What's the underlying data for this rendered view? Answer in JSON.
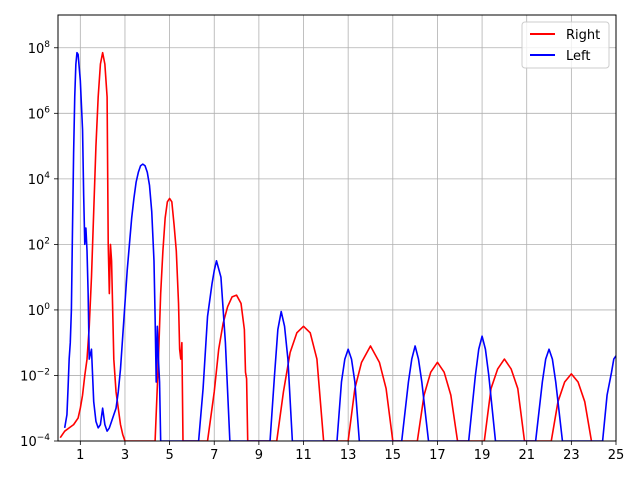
{
  "chart_data": {
    "type": "line",
    "title": "",
    "xlabel": "",
    "ylabel": "",
    "xlim": [
      0,
      25
    ],
    "ylim_exponent": [
      -4,
      9
    ],
    "yscale": "log",
    "grid": true,
    "legend_position": "top-right",
    "x_ticks": [
      1,
      3,
      5,
      7,
      9,
      11,
      13,
      15,
      17,
      19,
      21,
      23,
      25
    ],
    "x_tick_labels": [
      "1",
      "3",
      "5",
      "7",
      "9",
      "11",
      "13",
      "15",
      "17",
      "19",
      "21",
      "23",
      "25"
    ],
    "y_ticks_exponent": [
      -4,
      -2,
      0,
      2,
      4,
      6,
      8
    ],
    "y_tick_base": "10",
    "y_tick_exponent_labels": [
      "−4",
      "−2",
      "0",
      "2",
      "4",
      "6",
      "8"
    ],
    "series": [
      {
        "name": "Right",
        "color": "#ff0000",
        "x": [
          0.1,
          0.3,
          0.5,
          0.7,
          0.9,
          1.0,
          1.1,
          1.2,
          1.3,
          1.4,
          1.5,
          1.6,
          1.7,
          1.8,
          1.9,
          2.0,
          2.1,
          2.2,
          2.25,
          2.3,
          2.35,
          2.4,
          2.5,
          2.6,
          2.7,
          2.8,
          2.9,
          3.0,
          4.35,
          4.5,
          4.6,
          4.7,
          4.8,
          4.9,
          5.0,
          5.1,
          5.2,
          5.3,
          5.4,
          5.45,
          5.5,
          5.55,
          5.6,
          6.7,
          7.0,
          7.2,
          7.4,
          7.6,
          7.8,
          8.0,
          8.2,
          8.35,
          8.4,
          8.45,
          8.5,
          9.8,
          10.1,
          10.4,
          10.7,
          11.0,
          11.3,
          11.6,
          11.9,
          13.0,
          13.3,
          13.6,
          14.0,
          14.4,
          14.7,
          15.0,
          16.1,
          16.4,
          16.7,
          17.0,
          17.3,
          17.6,
          17.9,
          19.1,
          19.4,
          19.7,
          20.0,
          20.3,
          20.6,
          20.9,
          22.1,
          22.4,
          22.7,
          23.0,
          23.3,
          23.6,
          23.9
        ],
        "y_exponent": [
          -3.9,
          -3.7,
          -3.6,
          -3.5,
          -3.3,
          -3.0,
          -2.6,
          -2.0,
          -1.5,
          -0.5,
          1.0,
          3.0,
          5.0,
          6.5,
          7.5,
          7.85,
          7.5,
          6.5,
          2.0,
          0.5,
          2.0,
          1.5,
          -1.5,
          -2.5,
          -3.0,
          -3.5,
          -3.8,
          -4.0,
          -4.0,
          -1.5,
          0.5,
          1.8,
          2.8,
          3.3,
          3.4,
          3.3,
          2.6,
          1.8,
          0.2,
          -1.2,
          -1.5,
          -1.0,
          -4.0,
          -4.0,
          -2.5,
          -1.2,
          -0.4,
          0.1,
          0.4,
          0.45,
          0.2,
          -0.6,
          -1.9,
          -2.1,
          -4.0,
          -4.0,
          -2.5,
          -1.3,
          -0.7,
          -0.5,
          -0.7,
          -1.5,
          -4.0,
          -4.0,
          -2.4,
          -1.6,
          -1.1,
          -1.6,
          -2.4,
          -4.0,
          -4.0,
          -2.6,
          -1.9,
          -1.6,
          -1.9,
          -2.6,
          -4.0,
          -4.0,
          -2.4,
          -1.8,
          -1.5,
          -1.8,
          -2.4,
          -4.0,
          -4.0,
          -2.8,
          -2.2,
          -1.95,
          -2.2,
          -2.8,
          -4.0
        ]
      },
      {
        "name": "Left",
        "color": "#0000ff",
        "x": [
          0.3,
          0.4,
          0.45,
          0.5,
          0.55,
          0.6,
          0.65,
          0.7,
          0.75,
          0.8,
          0.85,
          0.9,
          1.0,
          1.1,
          1.15,
          1.2,
          1.25,
          1.3,
          1.35,
          1.4,
          1.5,
          1.6,
          1.7,
          1.8,
          1.9,
          2.0,
          2.1,
          2.2,
          2.3,
          2.4,
          2.5,
          2.6,
          2.7,
          2.8,
          2.9,
          3.0,
          3.1,
          3.2,
          3.3,
          3.4,
          3.5,
          3.6,
          3.7,
          3.8,
          3.9,
          4.0,
          4.1,
          4.2,
          4.3,
          4.35,
          4.4,
          4.45,
          4.5,
          4.55,
          4.6,
          4.8,
          6.3,
          6.5,
          6.7,
          6.9,
          7.0,
          7.1,
          7.3,
          7.5,
          7.7,
          9.5,
          9.7,
          9.85,
          10.0,
          10.15,
          10.3,
          10.5,
          12.5,
          12.7,
          12.85,
          13.0,
          13.15,
          13.3,
          13.5,
          15.4,
          15.7,
          15.85,
          16.0,
          16.15,
          16.3,
          16.6,
          18.4,
          18.7,
          18.85,
          19.0,
          19.15,
          19.3,
          19.6,
          21.4,
          21.7,
          21.85,
          22.0,
          22.15,
          22.3,
          22.6,
          24.4,
          24.6,
          24.8,
          24.9,
          25.0
        ],
        "y_exponent": [
          -3.6,
          -3.2,
          -2.4,
          -1.5,
          -1.0,
          0.0,
          2.5,
          4.8,
          6.5,
          7.5,
          7.85,
          7.8,
          7.0,
          5.5,
          3.5,
          2.0,
          2.5,
          1.8,
          0.5,
          -1.5,
          -1.2,
          -2.8,
          -3.4,
          -3.6,
          -3.5,
          -3.0,
          -3.5,
          -3.7,
          -3.6,
          -3.4,
          -3.2,
          -3.0,
          -2.5,
          -1.8,
          -0.8,
          0.2,
          1.2,
          2.0,
          2.8,
          3.4,
          3.9,
          4.2,
          4.4,
          4.45,
          4.4,
          4.2,
          3.8,
          3.0,
          1.5,
          -0.2,
          -2.2,
          -0.5,
          -1.5,
          -2.2,
          -4.0,
          -4.0,
          -4.0,
          -2.4,
          -0.2,
          0.8,
          1.2,
          1.5,
          1.0,
          -1.0,
          -4.0,
          -4.0,
          -2.0,
          -0.6,
          -0.05,
          -0.5,
          -1.5,
          -4.0,
          -4.0,
          -2.2,
          -1.5,
          -1.2,
          -1.5,
          -2.2,
          -4.0,
          -4.0,
          -2.2,
          -1.5,
          -1.1,
          -1.5,
          -2.2,
          -4.0,
          -4.0,
          -2.0,
          -1.2,
          -0.8,
          -1.2,
          -2.0,
          -4.0,
          -4.0,
          -2.2,
          -1.5,
          -1.2,
          -1.5,
          -2.2,
          -4.0,
          -4.0,
          -2.6,
          -1.9,
          -1.5,
          -1.4
        ]
      }
    ]
  }
}
